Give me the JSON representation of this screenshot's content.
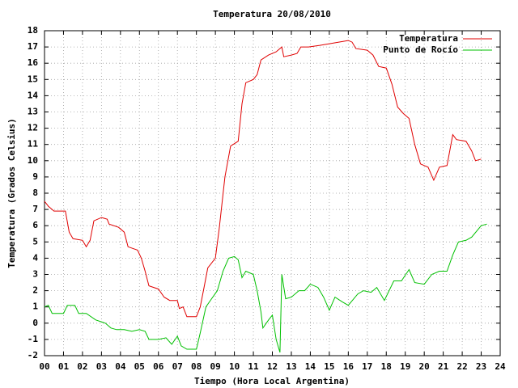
{
  "chart_data": {
    "type": "line",
    "title": "Temperatura 20/08/2010",
    "x_label": "Tiempo (Hora Local Argentina)",
    "y_label": "Temperatura (Grados Celsius)",
    "xlim": [
      0,
      24
    ],
    "ylim": [
      -2,
      18
    ],
    "xticks": [
      {
        "value": 0,
        "label": "00"
      },
      {
        "value": 1,
        "label": "01"
      },
      {
        "value": 2,
        "label": "02"
      },
      {
        "value": 3,
        "label": "03"
      },
      {
        "value": 4,
        "label": "04"
      },
      {
        "value": 5,
        "label": "05"
      },
      {
        "value": 6,
        "label": "06"
      },
      {
        "value": 7,
        "label": "07"
      },
      {
        "value": 8,
        "label": "08"
      },
      {
        "value": 9,
        "label": "09"
      },
      10,
      11,
      12,
      13,
      14,
      15,
      16,
      17,
      18,
      19,
      20,
      21,
      22,
      23,
      24
    ],
    "yticks": [
      -2,
      -1,
      0,
      1,
      2,
      3,
      4,
      5,
      6,
      7,
      8,
      9,
      10,
      11,
      12,
      13,
      14,
      15,
      16,
      17,
      18
    ],
    "grid": true,
    "legend": "top-right",
    "series": [
      {
        "name": "Temperatura",
        "color": "#e00000",
        "x": [
          0,
          0.2,
          0.5,
          1.1,
          1.3,
          1.5,
          2.0,
          2.2,
          2.4,
          2.6,
          3.0,
          3.3,
          3.4,
          3.9,
          4.2,
          4.4,
          4.9,
          5.1,
          5.3,
          5.5,
          6.0,
          6.3,
          6.6,
          7.0,
          7.1,
          7.3,
          7.5,
          8.0,
          8.2,
          8.4,
          8.6,
          9.0,
          9.2,
          9.5,
          9.8,
          10.2,
          10.4,
          10.6,
          11.0,
          11.2,
          11.4,
          11.8,
          12.2,
          12.5,
          12.6,
          13.0,
          13.3,
          13.5,
          13.9,
          14.5,
          15.0,
          15.5,
          16.0,
          16.2,
          16.4,
          17.0,
          17.3,
          17.6,
          18.0,
          18.3,
          18.6,
          18.9,
          19.2,
          19.5,
          19.8,
          20.0,
          20.2,
          20.5,
          20.8,
          21.2,
          21.5,
          21.7,
          22.2,
          22.5,
          22.7,
          23.0
        ],
        "values": [
          7.5,
          7.2,
          6.9,
          6.9,
          5.6,
          5.2,
          5.1,
          4.7,
          5.1,
          6.3,
          6.5,
          6.4,
          6.1,
          5.9,
          5.6,
          4.7,
          4.5,
          4.0,
          3.2,
          2.3,
          2.1,
          1.6,
          1.4,
          1.4,
          0.9,
          1.0,
          0.4,
          0.4,
          1.0,
          2.2,
          3.4,
          4.0,
          5.8,
          9.0,
          10.9,
          11.2,
          13.5,
          14.8,
          15.0,
          15.3,
          16.2,
          16.5,
          16.7,
          17.0,
          16.4,
          16.5,
          16.6,
          17.0,
          17.0,
          17.1,
          17.2,
          17.3,
          17.4,
          17.3,
          16.9,
          16.8,
          16.5,
          15.8,
          15.7,
          14.7,
          13.3,
          12.9,
          12.6,
          11.0,
          9.8,
          9.7,
          9.6,
          8.8,
          9.6,
          9.7,
          11.6,
          11.3,
          11.2,
          10.6,
          10.0,
          10.1
        ]
      },
      {
        "name": "Punto de Rocío",
        "color": "#00c000",
        "x": [
          0,
          0.2,
          0.4,
          1.0,
          1.2,
          1.6,
          1.8,
          2.2,
          2.7,
          3.2,
          3.5,
          3.8,
          4.2,
          4.6,
          5.0,
          5.3,
          5.5,
          6.0,
          6.4,
          6.7,
          7.0,
          7.2,
          7.5,
          8.0,
          8.2,
          8.5,
          8.8,
          9.1,
          9.4,
          9.7,
          10.0,
          10.2,
          10.4,
          10.6,
          11.0,
          11.2,
          11.4,
          11.5,
          11.8,
          12.0,
          12.2,
          12.4,
          12.5,
          12.7,
          13.0,
          13.4,
          13.7,
          14.0,
          14.4,
          14.7,
          15.0,
          15.3,
          15.7,
          16.0,
          16.5,
          16.8,
          17.2,
          17.5,
          17.9,
          18.4,
          18.8,
          19.2,
          19.5,
          20.0,
          20.4,
          20.8,
          21.2,
          21.5,
          21.8,
          22.2,
          22.5,
          23.0,
          23.3
        ],
        "values": [
          1.0,
          1.1,
          0.6,
          0.6,
          1.1,
          1.1,
          0.6,
          0.6,
          0.2,
          0.0,
          -0.3,
          -0.4,
          -0.4,
          -0.5,
          -0.4,
          -0.5,
          -1.0,
          -1.0,
          -0.9,
          -1.3,
          -0.8,
          -1.4,
          -1.6,
          -1.6,
          -0.6,
          1.0,
          1.5,
          2.0,
          3.2,
          4.0,
          4.1,
          3.9,
          2.8,
          3.2,
          3.0,
          2.0,
          0.7,
          -0.3,
          0.2,
          0.5,
          -1.0,
          -1.8,
          3.0,
          1.5,
          1.6,
          2.0,
          2.0,
          2.4,
          2.2,
          1.6,
          0.8,
          1.6,
          1.3,
          1.1,
          1.8,
          2.0,
          1.9,
          2.2,
          1.4,
          2.6,
          2.6,
          3.3,
          2.5,
          2.4,
          3.0,
          3.2,
          3.2,
          4.2,
          5.0,
          5.1,
          5.3,
          6.0,
          6.1
        ]
      }
    ]
  }
}
